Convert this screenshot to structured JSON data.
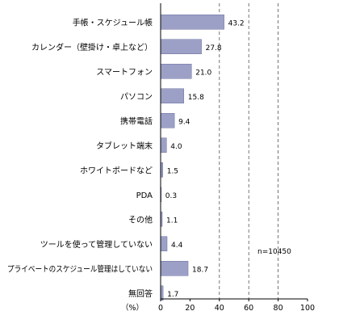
{
  "chart_data": {
    "type": "bar",
    "orientation": "horizontal",
    "categories": [
      "手帳・スケジュール帳",
      "カレンダー（壁掛け・卓上など）",
      "スマートフォン",
      "パソコン",
      "携帯電話",
      "タブレット端末",
      "ホワイトボードなど",
      "PDA",
      "その他",
      "ツールを使って管理していない",
      "プライベートのスケジュール管理はしていない",
      "無回答"
    ],
    "values": [
      43.2,
      27.8,
      21.0,
      15.8,
      9.4,
      4.0,
      1.5,
      0.3,
      1.1,
      4.4,
      18.7,
      1.7
    ],
    "value_labels": [
      "43.2",
      "27.8",
      "21.0",
      "15.8",
      "9.4",
      "4.0",
      "1.5",
      "0.3",
      "1.1",
      "4.4",
      "18.7",
      "1.7"
    ],
    "xlim": [
      0,
      100
    ],
    "xticks": [
      "0",
      "20",
      "40",
      "60",
      "80",
      "100"
    ],
    "xlabel": "（%）",
    "annotation": "n=10450",
    "bar_color": "#9da0c6",
    "bar_edge_color": "#6b6f9e",
    "grid": "dashed vertical lines at 40, 60, 80"
  }
}
